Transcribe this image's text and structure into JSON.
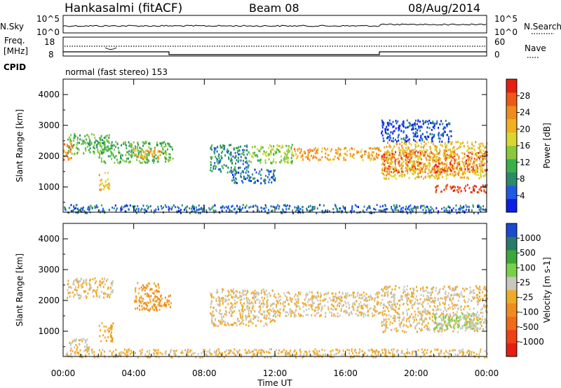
{
  "header": {
    "title": "Hankasalmi (fitACF)",
    "beam": "Beam 08",
    "date": "08/Aug/2014"
  },
  "noise_panel": {
    "left_label": "N.Sky",
    "left_ticks": [
      "10^5",
      "10^0"
    ],
    "right_label": "N.Search",
    "right_ticks": [
      "10^5",
      "10^0"
    ]
  },
  "freq_panel": {
    "left_label_line1": "Freq.",
    "left_label_line2": "[MHz]",
    "left_ticks": [
      "18",
      "8"
    ],
    "right_label": "Nave",
    "right_ticks": [
      "60",
      "0"
    ]
  },
  "cpid_panel": {
    "label": "CPID",
    "program": "normal (fast stereo) 153"
  },
  "x_axis": {
    "label": "Time UT",
    "ticks": [
      "00:00",
      "04:00",
      "08:00",
      "12:00",
      "16:00",
      "20:00",
      "00:00"
    ]
  },
  "chart_data": [
    {
      "type": "heatmap",
      "quantity": "Power",
      "ylabel": "Slant Range [km]",
      "yticks": [
        "1000",
        "2000",
        "3000",
        "4000"
      ],
      "ylim": [
        180,
        4500
      ],
      "xlim_hours": [
        0,
        24
      ],
      "colorbar": {
        "label": "Power [dB]",
        "ticks": [
          "4",
          "8",
          "12",
          "16",
          "20",
          "24",
          "28"
        ],
        "range": [
          0,
          32
        ],
        "colors": [
          "#0a1ee6",
          "#1e5ae6",
          "#2a8a6a",
          "#3ab04a",
          "#8cc83c",
          "#d8d830",
          "#f0b020",
          "#f08c1e",
          "#ec5a14",
          "#e61e10"
        ]
      },
      "patches": [
        {
          "t": [
            0.2,
            2.8
          ],
          "r": [
            2100,
            2750
          ],
          "level": 12
        },
        {
          "t": [
            0.0,
            0.5
          ],
          "r": [
            1900,
            2500
          ],
          "level": 24
        },
        {
          "t": [
            2.0,
            6.2
          ],
          "r": [
            1800,
            2500
          ],
          "level": 12
        },
        {
          "t": [
            4.0,
            5.5
          ],
          "r": [
            1950,
            2300
          ],
          "level": 22
        },
        {
          "t": [
            8.3,
            10.5
          ],
          "r": [
            1500,
            2400
          ],
          "level": 8
        },
        {
          "t": [
            9.5,
            12.0
          ],
          "r": [
            1150,
            1600
          ],
          "level": 6
        },
        {
          "t": [
            10.5,
            13.0
          ],
          "r": [
            1800,
            2400
          ],
          "level": 14
        },
        {
          "t": [
            13.0,
            18.0
          ],
          "r": [
            1900,
            2300
          ],
          "level": 22
        },
        {
          "t": [
            18.0,
            24.0
          ],
          "r": [
            1500,
            2200
          ],
          "level": 28
        },
        {
          "t": [
            18.0,
            24.0
          ],
          "r": [
            1300,
            2500
          ],
          "level": 20
        },
        {
          "t": [
            21.0,
            24.0
          ],
          "r": [
            850,
            1100
          ],
          "level": 30
        },
        {
          "t": [
            18.0,
            22.0
          ],
          "r": [
            2500,
            3200
          ],
          "level": 4
        },
        {
          "t": [
            2.0,
            2.6
          ],
          "r": [
            900,
            1500
          ],
          "level": 20
        },
        {
          "t": [
            0.0,
            24.0
          ],
          "r": [
            180,
            450
          ],
          "level": 6
        }
      ]
    },
    {
      "type": "heatmap",
      "quantity": "Velocity",
      "ylabel": "Slant Range [km]",
      "yticks": [
        "1000",
        "2000",
        "3000",
        "4000"
      ],
      "ylim": [
        180,
        4500
      ],
      "xlim_hours": [
        0,
        24
      ],
      "colorbar": {
        "label": "Velocity [m s-1]",
        "ticks": [
          "1000",
          "500",
          "100",
          "25",
          "-25",
          "-100",
          "-500",
          "-1000"
        ],
        "range": [
          -1250,
          1250
        ],
        "colors": [
          "#e61e10",
          "#f04016",
          "#f06a1a",
          "#f08c1e",
          "#f0aa28",
          "#c8c8c0",
          "#7ad04a",
          "#3aa83a",
          "#2a7a6a",
          "#1a4ad0"
        ]
      },
      "patches": [
        {
          "t": [
            0.2,
            2.8
          ],
          "r": [
            2100,
            2750
          ],
          "level": 0
        },
        {
          "t": [
            4.0,
            5.5
          ],
          "r": [
            1700,
            2600
          ],
          "level": -300
        },
        {
          "t": [
            5.0,
            6.2
          ],
          "r": [
            1800,
            2200
          ],
          "level": -300
        },
        {
          "t": [
            8.3,
            12.0
          ],
          "r": [
            1200,
            2400
          ],
          "level": 0
        },
        {
          "t": [
            12.0,
            18.0
          ],
          "r": [
            1500,
            2300
          ],
          "level": 0
        },
        {
          "t": [
            18.0,
            24.0
          ],
          "r": [
            1000,
            2500
          ],
          "level": 0
        },
        {
          "t": [
            21.0,
            23.5
          ],
          "r": [
            1100,
            1600
          ],
          "level": 300
        },
        {
          "t": [
            23.0,
            24.0
          ],
          "r": [
            1100,
            1400
          ],
          "level": 80
        },
        {
          "t": [
            0.3,
            1.5
          ],
          "r": [
            400,
            800
          ],
          "level": 60
        },
        {
          "t": [
            2.0,
            2.8
          ],
          "r": [
            700,
            1300
          ],
          "level": -150
        },
        {
          "t": [
            0.0,
            24.0
          ],
          "r": [
            180,
            450
          ],
          "level": -60
        }
      ]
    }
  ]
}
